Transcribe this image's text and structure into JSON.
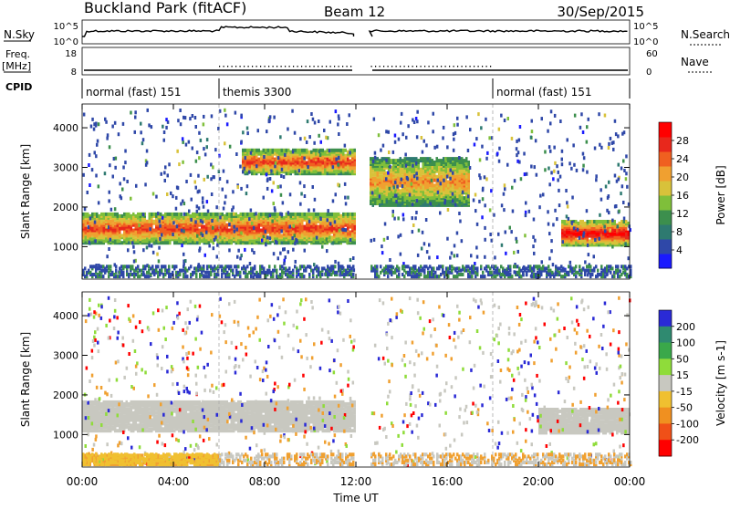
{
  "header": {
    "site": "Buckland Park (fitACF)",
    "beam": "Beam 12",
    "date": "30/Sep/2015"
  },
  "strip_labels": {
    "nsky": "N.Sky",
    "nsky_top": "10^5",
    "nsky_bot": "10^0",
    "nsearch": "N.Search",
    "nsearch_top": "10^5",
    "nsearch_bot": "10^0",
    "freq": "Freq.",
    "freq_unit": "[MHz]",
    "freq_top": "18",
    "freq_bot": "8",
    "nave": "Nave",
    "nave_top": "60",
    "nave_bot": "0",
    "cpid": "CPID"
  },
  "cpid_segments": [
    {
      "label": "normal (fast) 151",
      "start_hour": 0
    },
    {
      "label": "themis 3300",
      "start_hour": 6
    },
    {
      "label": "normal (fast) 151",
      "start_hour": 18
    }
  ],
  "chart_data": [
    {
      "type": "heatmap",
      "quantity": "Power",
      "ylabel": "Slant Range [km]",
      "xlabel": "Time UT",
      "xlim_hours": [
        0,
        24
      ],
      "ylim": [
        180,
        4600
      ],
      "yticks": [
        1000,
        2000,
        3000,
        4000
      ],
      "xticks": [
        "00:00",
        "04:00",
        "08:00",
        "12:00",
        "16:00",
        "20:00",
        "00:00"
      ],
      "colorbar": {
        "label": "Power [dB]",
        "ticks": [
          "4",
          "8",
          "12",
          "16",
          "20",
          "24",
          "28"
        ],
        "colors": [
          "#1a1aff",
          "#2f48a8",
          "#2e7a70",
          "#3c8f4d",
          "#7fbf3a",
          "#d8c23a",
          "#f0a030",
          "#f06020",
          "#e8281c",
          "#ff0000"
        ]
      },
      "data_gap_hours": [
        11.9,
        12.6
      ],
      "features": [
        {
          "name": "near-range band",
          "start_hour": 0,
          "end_hour": 11.9,
          "range_km": [
            1050,
            1800
          ],
          "peak_db": 24
        },
        {
          "name": "upper echoes",
          "start_hour": 7,
          "end_hour": 11.9,
          "range_km": [
            2800,
            3400
          ],
          "peak_db": 24
        },
        {
          "name": "afternoon band",
          "start_hour": 12.6,
          "end_hour": 17,
          "range_km": [
            2000,
            3200
          ],
          "peak_db": 20
        },
        {
          "name": "evening strong band",
          "start_hour": 21,
          "end_hour": 24,
          "range_km": [
            1000,
            1600
          ],
          "peak_db": 28
        }
      ]
    },
    {
      "type": "heatmap",
      "quantity": "Velocity",
      "ylabel": "Slant Range [km]",
      "xlabel": "Time UT",
      "xlim_hours": [
        0,
        24
      ],
      "ylim": [
        180,
        4600
      ],
      "yticks": [
        1000,
        2000,
        3000,
        4000
      ],
      "xticks": [
        "00:00",
        "04:00",
        "08:00",
        "12:00",
        "16:00",
        "20:00",
        "00:00"
      ],
      "colorbar": {
        "label": "Velocity [m s-1]",
        "ticks": [
          "200",
          "100",
          "50",
          "15",
          "-15",
          "-50",
          "-100",
          "-200"
        ],
        "colors": [
          "#2a2ad6",
          "#2f8a70",
          "#3aa84a",
          "#8fdc3a",
          "#c8c8c0",
          "#f0c030",
          "#f09020",
          "#f05018",
          "#ff0000"
        ]
      },
      "data_gap_hours": [
        11.9,
        12.6
      ],
      "features": [
        {
          "name": "ground scatter band",
          "start_hour": 0,
          "end_hour": 11.9,
          "range_km": [
            1050,
            1800
          ],
          "velocity": 0
        },
        {
          "name": "negative near range",
          "start_hour": 0,
          "end_hour": 6,
          "range_km": [
            200,
            450
          ],
          "velocity": -60
        },
        {
          "name": "evening ground scatter",
          "start_hour": 20,
          "end_hour": 24,
          "range_km": [
            1000,
            1600
          ],
          "velocity": 0
        }
      ]
    }
  ]
}
